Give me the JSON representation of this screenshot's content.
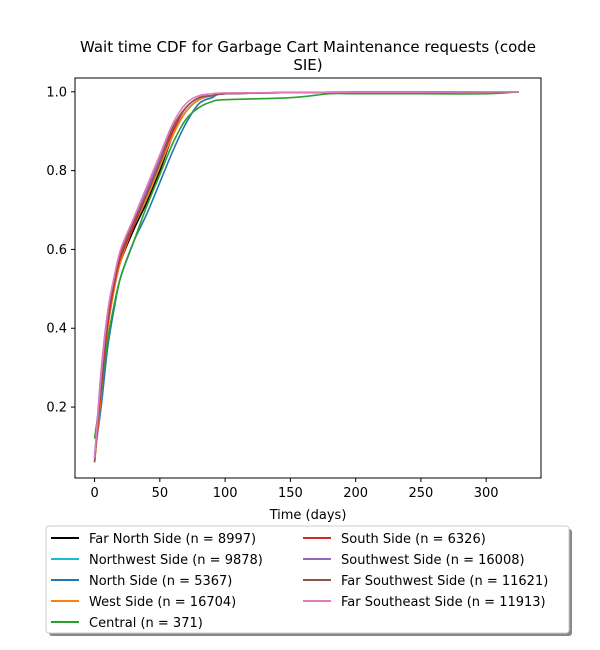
{
  "chart_data": {
    "type": "line",
    "title_lines": [
      "Wait time CDF for Garbage Cart Maintenance  requests (code",
      "SIE)"
    ],
    "xlabel": "Time (days)",
    "ylabel": "",
    "xlim": [
      -15,
      342
    ],
    "ylim": [
      0.02,
      1.035
    ],
    "xticks": [
      0,
      50,
      100,
      150,
      200,
      250,
      300
    ],
    "yticks": [
      0.2,
      0.4,
      0.6,
      0.8,
      1.0
    ],
    "ytick_labels": [
      "0.2",
      "0.4",
      "0.6",
      "0.8",
      "1.0"
    ],
    "grid": false,
    "legend_position": "below",
    "series": [
      {
        "name": "Far North Side (n = 8997)",
        "color": "#000000",
        "x": [
          0,
          5,
          10,
          15,
          20,
          30,
          40,
          50,
          60,
          70,
          80,
          90,
          100,
          150,
          200,
          250,
          300,
          325
        ],
        "y": [
          0.07,
          0.24,
          0.4,
          0.5,
          0.57,
          0.65,
          0.72,
          0.8,
          0.89,
          0.95,
          0.98,
          0.99,
          0.995,
          0.998,
          0.999,
          0.999,
          1.0,
          1.0
        ]
      },
      {
        "name": "Northwest Side (n = 9878)",
        "color": "#17becf",
        "x": [
          0,
          5,
          10,
          15,
          20,
          30,
          40,
          50,
          60,
          70,
          80,
          90,
          100,
          150,
          200,
          250,
          300,
          325
        ],
        "y": [
          0.07,
          0.26,
          0.42,
          0.51,
          0.58,
          0.66,
          0.73,
          0.81,
          0.89,
          0.95,
          0.98,
          0.99,
          0.995,
          0.998,
          0.999,
          0.999,
          1.0,
          1.0
        ]
      },
      {
        "name": "North Side (n = 5367)",
        "color": "#1f77b4",
        "x": [
          0,
          5,
          10,
          15,
          20,
          30,
          40,
          50,
          60,
          70,
          80,
          90,
          100,
          150,
          200,
          250,
          300,
          325
        ],
        "y": [
          0.08,
          0.2,
          0.35,
          0.45,
          0.53,
          0.62,
          0.69,
          0.77,
          0.85,
          0.92,
          0.97,
          0.985,
          0.995,
          0.998,
          0.999,
          0.999,
          1.0,
          1.0
        ]
      },
      {
        "name": "West Side (n = 16704)",
        "color": "#ff7f0e",
        "x": [
          0,
          5,
          10,
          15,
          20,
          30,
          40,
          50,
          60,
          70,
          80,
          90,
          100,
          150,
          200,
          250,
          300,
          325
        ],
        "y": [
          0.06,
          0.23,
          0.4,
          0.5,
          0.57,
          0.66,
          0.73,
          0.81,
          0.89,
          0.95,
          0.98,
          0.99,
          0.995,
          0.998,
          0.999,
          0.999,
          1.0,
          1.0
        ]
      },
      {
        "name": "Central (n = 371)",
        "color": "#2ca02c",
        "x": [
          0,
          5,
          10,
          15,
          20,
          30,
          40,
          50,
          60,
          70,
          80,
          90,
          100,
          150,
          180,
          200,
          250,
          300,
          325
        ],
        "y": [
          0.12,
          0.24,
          0.37,
          0.46,
          0.53,
          0.62,
          0.71,
          0.79,
          0.87,
          0.93,
          0.96,
          0.975,
          0.98,
          0.985,
          0.995,
          0.995,
          0.995,
          0.995,
          1.0
        ]
      },
      {
        "name": "South Side (n = 6326)",
        "color": "#d62728",
        "x": [
          0,
          5,
          10,
          15,
          20,
          30,
          40,
          50,
          60,
          70,
          80,
          90,
          100,
          150,
          200,
          250,
          300,
          325
        ],
        "y": [
          0.06,
          0.25,
          0.41,
          0.51,
          0.58,
          0.66,
          0.74,
          0.82,
          0.9,
          0.96,
          0.985,
          0.99,
          0.995,
          0.998,
          0.999,
          0.999,
          1.0,
          1.0
        ]
      },
      {
        "name": "Southwest Side (n = 16008)",
        "color": "#9467bd",
        "x": [
          0,
          5,
          10,
          15,
          20,
          30,
          40,
          50,
          60,
          70,
          80,
          90,
          100,
          150,
          200,
          250,
          300,
          325
        ],
        "y": [
          0.07,
          0.29,
          0.44,
          0.53,
          0.59,
          0.67,
          0.75,
          0.83,
          0.91,
          0.96,
          0.985,
          0.99,
          0.995,
          0.998,
          0.999,
          0.999,
          1.0,
          1.0
        ]
      },
      {
        "name": "Far Southwest Side (n = 11621)",
        "color": "#8c564b",
        "x": [
          0,
          5,
          10,
          15,
          20,
          30,
          40,
          50,
          60,
          70,
          80,
          90,
          100,
          150,
          200,
          250,
          300,
          325
        ],
        "y": [
          0.06,
          0.27,
          0.43,
          0.52,
          0.59,
          0.67,
          0.74,
          0.82,
          0.91,
          0.96,
          0.985,
          0.99,
          0.995,
          0.998,
          0.999,
          0.999,
          1.0,
          1.0
        ]
      },
      {
        "name": "Far Southeast Side (n = 11913)",
        "color": "#e377c2",
        "x": [
          0,
          5,
          10,
          15,
          20,
          30,
          40,
          50,
          60,
          70,
          80,
          90,
          100,
          150,
          200,
          250,
          300,
          325
        ],
        "y": [
          0.07,
          0.28,
          0.44,
          0.53,
          0.6,
          0.68,
          0.76,
          0.84,
          0.92,
          0.97,
          0.99,
          0.995,
          0.997,
          0.998,
          0.999,
          0.999,
          1.0,
          1.0
        ]
      }
    ]
  }
}
